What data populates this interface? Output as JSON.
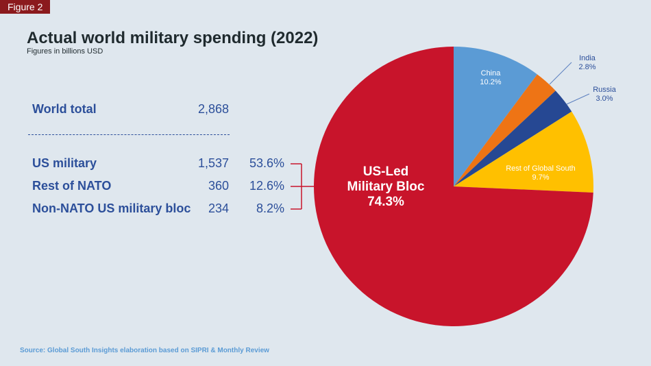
{
  "badge": "Figure 2",
  "header": {
    "title": "Actual world military spending (2022)",
    "subtitle": "Figures in billions USD"
  },
  "table": {
    "total": {
      "label": "World total",
      "value": "2,868"
    },
    "rows": [
      {
        "label": "US military",
        "value": "1,537",
        "pct": "53.6%"
      },
      {
        "label": "Rest of NATO",
        "value": "360",
        "pct": "12.6%"
      },
      {
        "label": "Non-NATO US military bloc",
        "value": "234",
        "pct": "8.2%"
      }
    ]
  },
  "source": "Source: Global South Insights elaboration based on SIPRI & Monthly Review",
  "chart_data": {
    "type": "pie",
    "title": "Actual world military spending (2022)",
    "start": "top, clockwise",
    "slices": [
      {
        "name": "China",
        "value": 10.2,
        "label": "10.2%",
        "color": "#5b9bd5",
        "label_inside": true
      },
      {
        "name": "India",
        "value": 2.8,
        "label": "2.8%",
        "color": "#ee7415",
        "label_inside": false
      },
      {
        "name": "Russia",
        "value": 3.0,
        "label": "3.0%",
        "color": "#264893",
        "label_inside": false
      },
      {
        "name": "Rest of Global South",
        "value": 9.7,
        "label": "9.7%",
        "color": "#ffc000",
        "label_inside": true
      },
      {
        "name": "US-Led Military Bloc",
        "value": 74.3,
        "label": "74.3%",
        "color": "#c8142b",
        "label_inside": true
      }
    ],
    "big_label": [
      "US-Led",
      "Military Bloc",
      "74.3%"
    ]
  }
}
